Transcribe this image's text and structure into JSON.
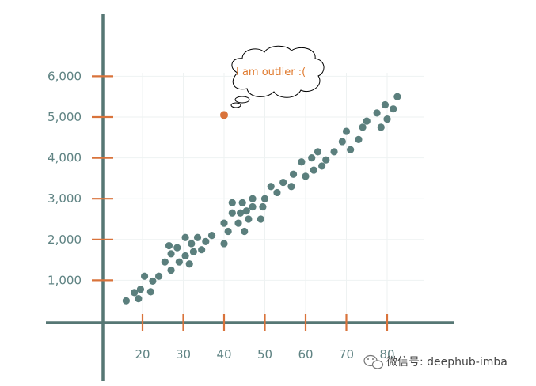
{
  "chart_data": {
    "type": "scatter",
    "title": "",
    "xlabel": "",
    "ylabel": "",
    "xlim": [
      10,
      90
    ],
    "ylim": [
      -1000,
      7500
    ],
    "x_ticks": [
      20,
      30,
      40,
      50,
      60,
      70,
      80
    ],
    "y_ticks": [
      1000,
      2000,
      3000,
      4000,
      5000,
      6000
    ],
    "x_tick_labels": [
      "20",
      "30",
      "40",
      "50",
      "60",
      "70",
      "80"
    ],
    "y_tick_labels": [
      "1,000",
      "2,000",
      "3,000",
      "4,000",
      "5,000",
      "6,000"
    ],
    "grid": true,
    "colors": {
      "points": "#5b7f7d",
      "outlier": "#d9733b",
      "axis": "#567774",
      "tick": "#d9733b"
    },
    "points": [
      {
        "x": 16,
        "y": 500
      },
      {
        "x": 18,
        "y": 700
      },
      {
        "x": 19,
        "y": 550
      },
      {
        "x": 19.5,
        "y": 780
      },
      {
        "x": 20.5,
        "y": 1100
      },
      {
        "x": 22,
        "y": 720
      },
      {
        "x": 22.5,
        "y": 980
      },
      {
        "x": 24,
        "y": 1100
      },
      {
        "x": 25.5,
        "y": 1450
      },
      {
        "x": 26.5,
        "y": 1850
      },
      {
        "x": 27,
        "y": 1250
      },
      {
        "x": 27,
        "y": 1650
      },
      {
        "x": 28.5,
        "y": 1800
      },
      {
        "x": 29,
        "y": 1450
      },
      {
        "x": 30.5,
        "y": 2050
      },
      {
        "x": 30.5,
        "y": 1600
      },
      {
        "x": 31.5,
        "y": 1400
      },
      {
        "x": 32,
        "y": 1900
      },
      {
        "x": 32.5,
        "y": 1700
      },
      {
        "x": 33.5,
        "y": 2050
      },
      {
        "x": 34.5,
        "y": 1750
      },
      {
        "x": 35.5,
        "y": 1950
      },
      {
        "x": 37,
        "y": 2100
      },
      {
        "x": 40,
        "y": 1900
      },
      {
        "x": 40,
        "y": 2400
      },
      {
        "x": 41,
        "y": 2200
      },
      {
        "x": 42,
        "y": 2900
      },
      {
        "x": 42,
        "y": 2650
      },
      {
        "x": 43.5,
        "y": 2400
      },
      {
        "x": 44,
        "y": 2650
      },
      {
        "x": 44.5,
        "y": 2900
      },
      {
        "x": 45,
        "y": 2200
      },
      {
        "x": 45.5,
        "y": 2700
      },
      {
        "x": 46,
        "y": 2500
      },
      {
        "x": 47,
        "y": 2800
      },
      {
        "x": 47,
        "y": 3000
      },
      {
        "x": 49,
        "y": 2500
      },
      {
        "x": 49.5,
        "y": 2800
      },
      {
        "x": 50,
        "y": 3000
      },
      {
        "x": 51.5,
        "y": 3300
      },
      {
        "x": 53,
        "y": 3150
      },
      {
        "x": 54.5,
        "y": 3400
      },
      {
        "x": 56.5,
        "y": 3300
      },
      {
        "x": 57,
        "y": 3600
      },
      {
        "x": 59,
        "y": 3900
      },
      {
        "x": 60,
        "y": 3550
      },
      {
        "x": 61.5,
        "y": 4000
      },
      {
        "x": 62,
        "y": 3700
      },
      {
        "x": 63,
        "y": 4150
      },
      {
        "x": 64,
        "y": 3800
      },
      {
        "x": 65,
        "y": 3950
      },
      {
        "x": 67,
        "y": 4150
      },
      {
        "x": 69,
        "y": 4400
      },
      {
        "x": 70,
        "y": 4650
      },
      {
        "x": 71,
        "y": 4200
      },
      {
        "x": 73,
        "y": 4450
      },
      {
        "x": 74,
        "y": 4750
      },
      {
        "x": 75,
        "y": 4900
      },
      {
        "x": 77.5,
        "y": 5100
      },
      {
        "x": 78.5,
        "y": 4750
      },
      {
        "x": 79.5,
        "y": 5300
      },
      {
        "x": 80,
        "y": 4950
      },
      {
        "x": 81.5,
        "y": 5200
      },
      {
        "x": 82.5,
        "y": 5500
      }
    ],
    "outlier": {
      "x": 40,
      "y": 5050
    },
    "annotation": "I am outlier :("
  },
  "watermark": "微信号: deephub-imba"
}
